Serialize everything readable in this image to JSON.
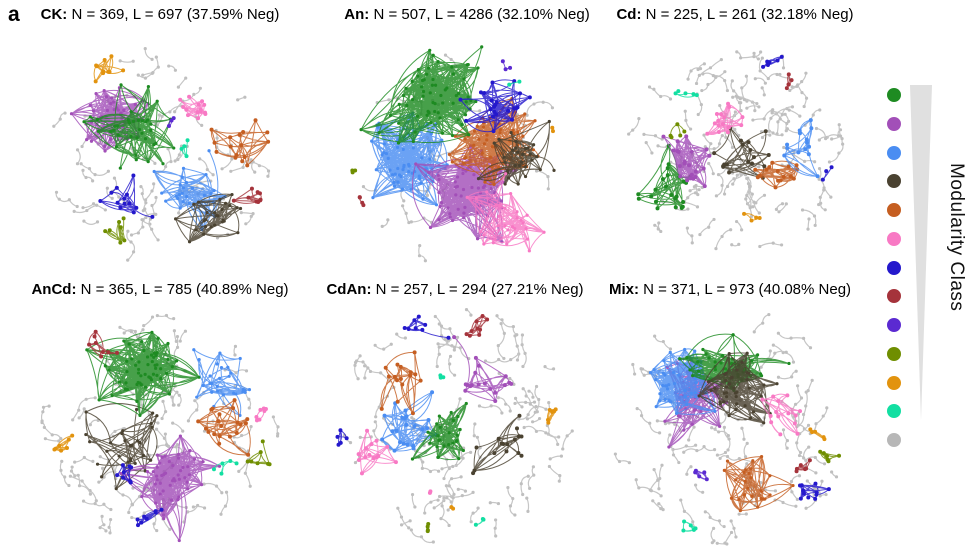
{
  "figure": {
    "panel_label": "a",
    "legend": {
      "title": "Modularity Class",
      "num_classes": 13,
      "colors": [
        "#1e8b22",
        "#a24fb8",
        "#4a8df2",
        "#4a4231",
        "#c55e21",
        "#f879c4",
        "#2418cc",
        "#a5333b",
        "#5b2ad1",
        "#6f8e00",
        "#e2930e",
        "#12dfa2",
        "#b7b7b7"
      ],
      "wedge_color": "#e0e0e0",
      "periphery_edge_color": "#c6c6c6",
      "periphery_node_color": "#bfbfbf"
    },
    "panels": [
      {
        "key": "CK",
        "title_bold": "CK:",
        "title_rest": " N = 369, L = 697 (37.59% Neg)",
        "N": 369,
        "L": 697,
        "neg_pct": "37.59%",
        "seed": 11,
        "gray": 55,
        "clusters": [
          [
            1,
            0.29,
            0.33,
            0.12,
            40,
            5
          ],
          [
            0,
            0.37,
            0.41,
            0.14,
            38,
            4
          ],
          [
            2,
            0.63,
            0.64,
            0.1,
            26,
            4
          ],
          [
            3,
            0.69,
            0.77,
            0.11,
            26,
            3
          ],
          [
            4,
            0.82,
            0.47,
            0.09,
            16,
            2
          ],
          [
            5,
            0.65,
            0.32,
            0.08,
            14,
            2
          ],
          [
            7,
            0.88,
            0.68,
            0.06,
            9,
            2
          ],
          [
            6,
            0.37,
            0.71,
            0.09,
            13,
            2
          ],
          [
            9,
            0.32,
            0.81,
            0.05,
            7,
            2
          ],
          [
            10,
            0.29,
            0.11,
            0.07,
            10,
            2
          ],
          [
            11,
            0.62,
            0.47,
            0.035,
            4,
            1
          ],
          [
            8,
            0.56,
            0.36,
            0.03,
            3,
            1
          ]
        ]
      },
      {
        "key": "An",
        "title_bold": "An:",
        "title_rest": " N = 507, L = 4286 (32.10% Neg)",
        "N": 507,
        "L": 4286,
        "neg_pct": "32.10%",
        "seed": 22,
        "gray": 22,
        "clusters": [
          [
            2,
            0.27,
            0.52,
            0.17,
            55,
            5
          ],
          [
            1,
            0.5,
            0.64,
            0.17,
            65,
            6
          ],
          [
            4,
            0.62,
            0.46,
            0.15,
            50,
            4
          ],
          [
            3,
            0.68,
            0.54,
            0.13,
            30,
            3
          ],
          [
            0,
            0.39,
            0.27,
            0.16,
            65,
            6
          ],
          [
            6,
            0.62,
            0.3,
            0.1,
            22,
            4
          ],
          [
            5,
            0.63,
            0.78,
            0.13,
            30,
            3
          ],
          [
            7,
            0.07,
            0.7,
            0.04,
            4,
            1
          ],
          [
            9,
            0.06,
            0.57,
            0.03,
            3,
            1
          ],
          [
            10,
            0.82,
            0.42,
            0.02,
            2,
            1
          ],
          [
            11,
            0.67,
            0.22,
            0.02,
            2,
            1
          ],
          [
            8,
            0.65,
            0.15,
            0.03,
            3,
            1
          ]
        ]
      },
      {
        "key": "Cd",
        "title_bold": "Cd:",
        "title_rest": " N = 225, L = 261 (32.18% Neg)",
        "N": 225,
        "L": 261,
        "neg_pct": "32.18%",
        "seed": 33,
        "gray": 85,
        "clusters": [
          [
            0,
            0.22,
            0.63,
            0.12,
            24,
            2
          ],
          [
            3,
            0.535,
            0.51,
            0.1,
            18,
            2
          ],
          [
            5,
            0.47,
            0.355,
            0.09,
            16,
            3
          ],
          [
            1,
            0.32,
            0.54,
            0.09,
            22,
            5
          ],
          [
            4,
            0.675,
            0.61,
            0.09,
            16,
            3
          ],
          [
            2,
            0.76,
            0.465,
            0.09,
            14,
            2
          ],
          [
            11,
            0.285,
            0.25,
            0.04,
            5,
            1
          ],
          [
            9,
            0.25,
            0.4,
            0.04,
            5,
            1
          ],
          [
            6,
            0.65,
            0.115,
            0.045,
            6,
            2
          ],
          [
            7,
            0.72,
            0.17,
            0.04,
            5,
            1
          ],
          [
            10,
            0.57,
            0.78,
            0.035,
            4,
            1
          ],
          [
            6,
            0.87,
            0.59,
            0.03,
            3,
            1
          ]
        ]
      },
      {
        "key": "AnCd",
        "title_bold": "AnCd:",
        "title_rest": " N = 365, L = 785 (40.89% Neg)",
        "N": 365,
        "L": 785,
        "neg_pct": "40.89%",
        "seed": 44,
        "gray": 70,
        "clusters": [
          [
            3,
            0.37,
            0.58,
            0.12,
            28,
            2
          ],
          [
            0,
            0.434,
            0.27,
            0.135,
            58,
            7
          ],
          [
            2,
            0.71,
            0.343,
            0.12,
            28,
            2
          ],
          [
            4,
            0.754,
            0.504,
            0.1,
            20,
            2
          ],
          [
            1,
            0.547,
            0.706,
            0.13,
            50,
            6
          ],
          [
            7,
            0.273,
            0.177,
            0.05,
            8,
            2
          ],
          [
            10,
            0.121,
            0.565,
            0.045,
            7,
            3
          ],
          [
            9,
            0.884,
            0.64,
            0.04,
            7,
            3
          ],
          [
            11,
            0.767,
            0.66,
            0.035,
            5,
            1
          ],
          [
            5,
            0.884,
            0.464,
            0.045,
            7,
            1
          ],
          [
            6,
            0.35,
            0.7,
            0.05,
            8,
            2
          ],
          [
            6,
            0.466,
            0.88,
            0.055,
            8,
            2
          ]
        ]
      },
      {
        "key": "CdAn",
        "title_bold": "CdAn:",
        "title_rest": " N = 257, L = 294 (27.21% Neg)",
        "N": 257,
        "L": 294,
        "neg_pct": "27.21%",
        "seed": 55,
        "gray": 75,
        "clusters": [
          [
            2,
            0.32,
            0.51,
            0.1,
            22,
            3
          ],
          [
            0,
            0.47,
            0.545,
            0.11,
            26,
            4
          ],
          [
            4,
            0.31,
            0.32,
            0.1,
            16,
            2
          ],
          [
            1,
            0.61,
            0.33,
            0.1,
            18,
            2
          ],
          [
            3,
            0.66,
            0.58,
            0.09,
            16,
            2
          ],
          [
            5,
            0.17,
            0.61,
            0.08,
            14,
            2
          ],
          [
            7,
            0.57,
            0.115,
            0.05,
            9,
            3
          ],
          [
            6,
            0.37,
            0.1,
            0.06,
            8,
            2
          ],
          [
            6,
            0.07,
            0.57,
            0.04,
            5,
            2
          ],
          [
            10,
            0.865,
            0.44,
            0.035,
            6,
            3
          ],
          [
            11,
            0.435,
            0.295,
            0.025,
            3,
            1
          ],
          [
            11,
            0.6,
            0.88,
            0.025,
            3,
            1
          ],
          [
            9,
            0.397,
            0.915,
            0.03,
            4,
            2
          ],
          [
            10,
            0.49,
            0.85,
            0.02,
            2,
            1
          ],
          [
            5,
            0.385,
            0.77,
            0.02,
            2,
            1
          ]
        ]
      },
      {
        "key": "Mix",
        "title_bold": "Mix:",
        "title_rest": " N = 371, L = 973 (40.08% Neg)",
        "N": 371,
        "L": 973,
        "neg_pct": "40.08%",
        "seed": 66,
        "gray": 65,
        "clusters": [
          [
            1,
            0.365,
            0.395,
            0.14,
            38,
            4
          ],
          [
            2,
            0.327,
            0.33,
            0.12,
            40,
            5
          ],
          [
            0,
            0.49,
            0.25,
            0.13,
            40,
            5
          ],
          [
            3,
            0.52,
            0.37,
            0.12,
            40,
            5
          ],
          [
            4,
            0.57,
            0.73,
            0.11,
            26,
            3
          ],
          [
            5,
            0.72,
            0.465,
            0.08,
            14,
            2
          ],
          [
            6,
            0.81,
            0.755,
            0.07,
            11,
            2
          ],
          [
            7,
            0.78,
            0.66,
            0.04,
            6,
            2
          ],
          [
            9,
            0.88,
            0.625,
            0.04,
            6,
            3
          ],
          [
            10,
            0.845,
            0.54,
            0.035,
            5,
            2
          ],
          [
            11,
            0.346,
            0.91,
            0.035,
            5,
            2
          ],
          [
            8,
            0.39,
            0.685,
            0.035,
            5,
            2
          ]
        ]
      }
    ]
  },
  "chart_data": {
    "type": "network-panels",
    "panels": [
      {
        "label": "CK",
        "N": 369,
        "L": 697,
        "neg_pct": 37.59
      },
      {
        "label": "An",
        "N": 507,
        "L": 4286,
        "neg_pct": 32.1
      },
      {
        "label": "Cd",
        "N": 225,
        "L": 261,
        "neg_pct": 32.18
      },
      {
        "label": "AnCd",
        "N": 365,
        "L": 785,
        "neg_pct": 40.89
      },
      {
        "label": "CdAn",
        "N": 257,
        "L": 294,
        "neg_pct": 27.21
      },
      {
        "label": "Mix",
        "N": 371,
        "L": 973,
        "neg_pct": 40.08
      }
    ],
    "legend": {
      "title": "Modularity Class",
      "classes": 13,
      "note": "triangle wedge indicates decreasing module size"
    }
  }
}
